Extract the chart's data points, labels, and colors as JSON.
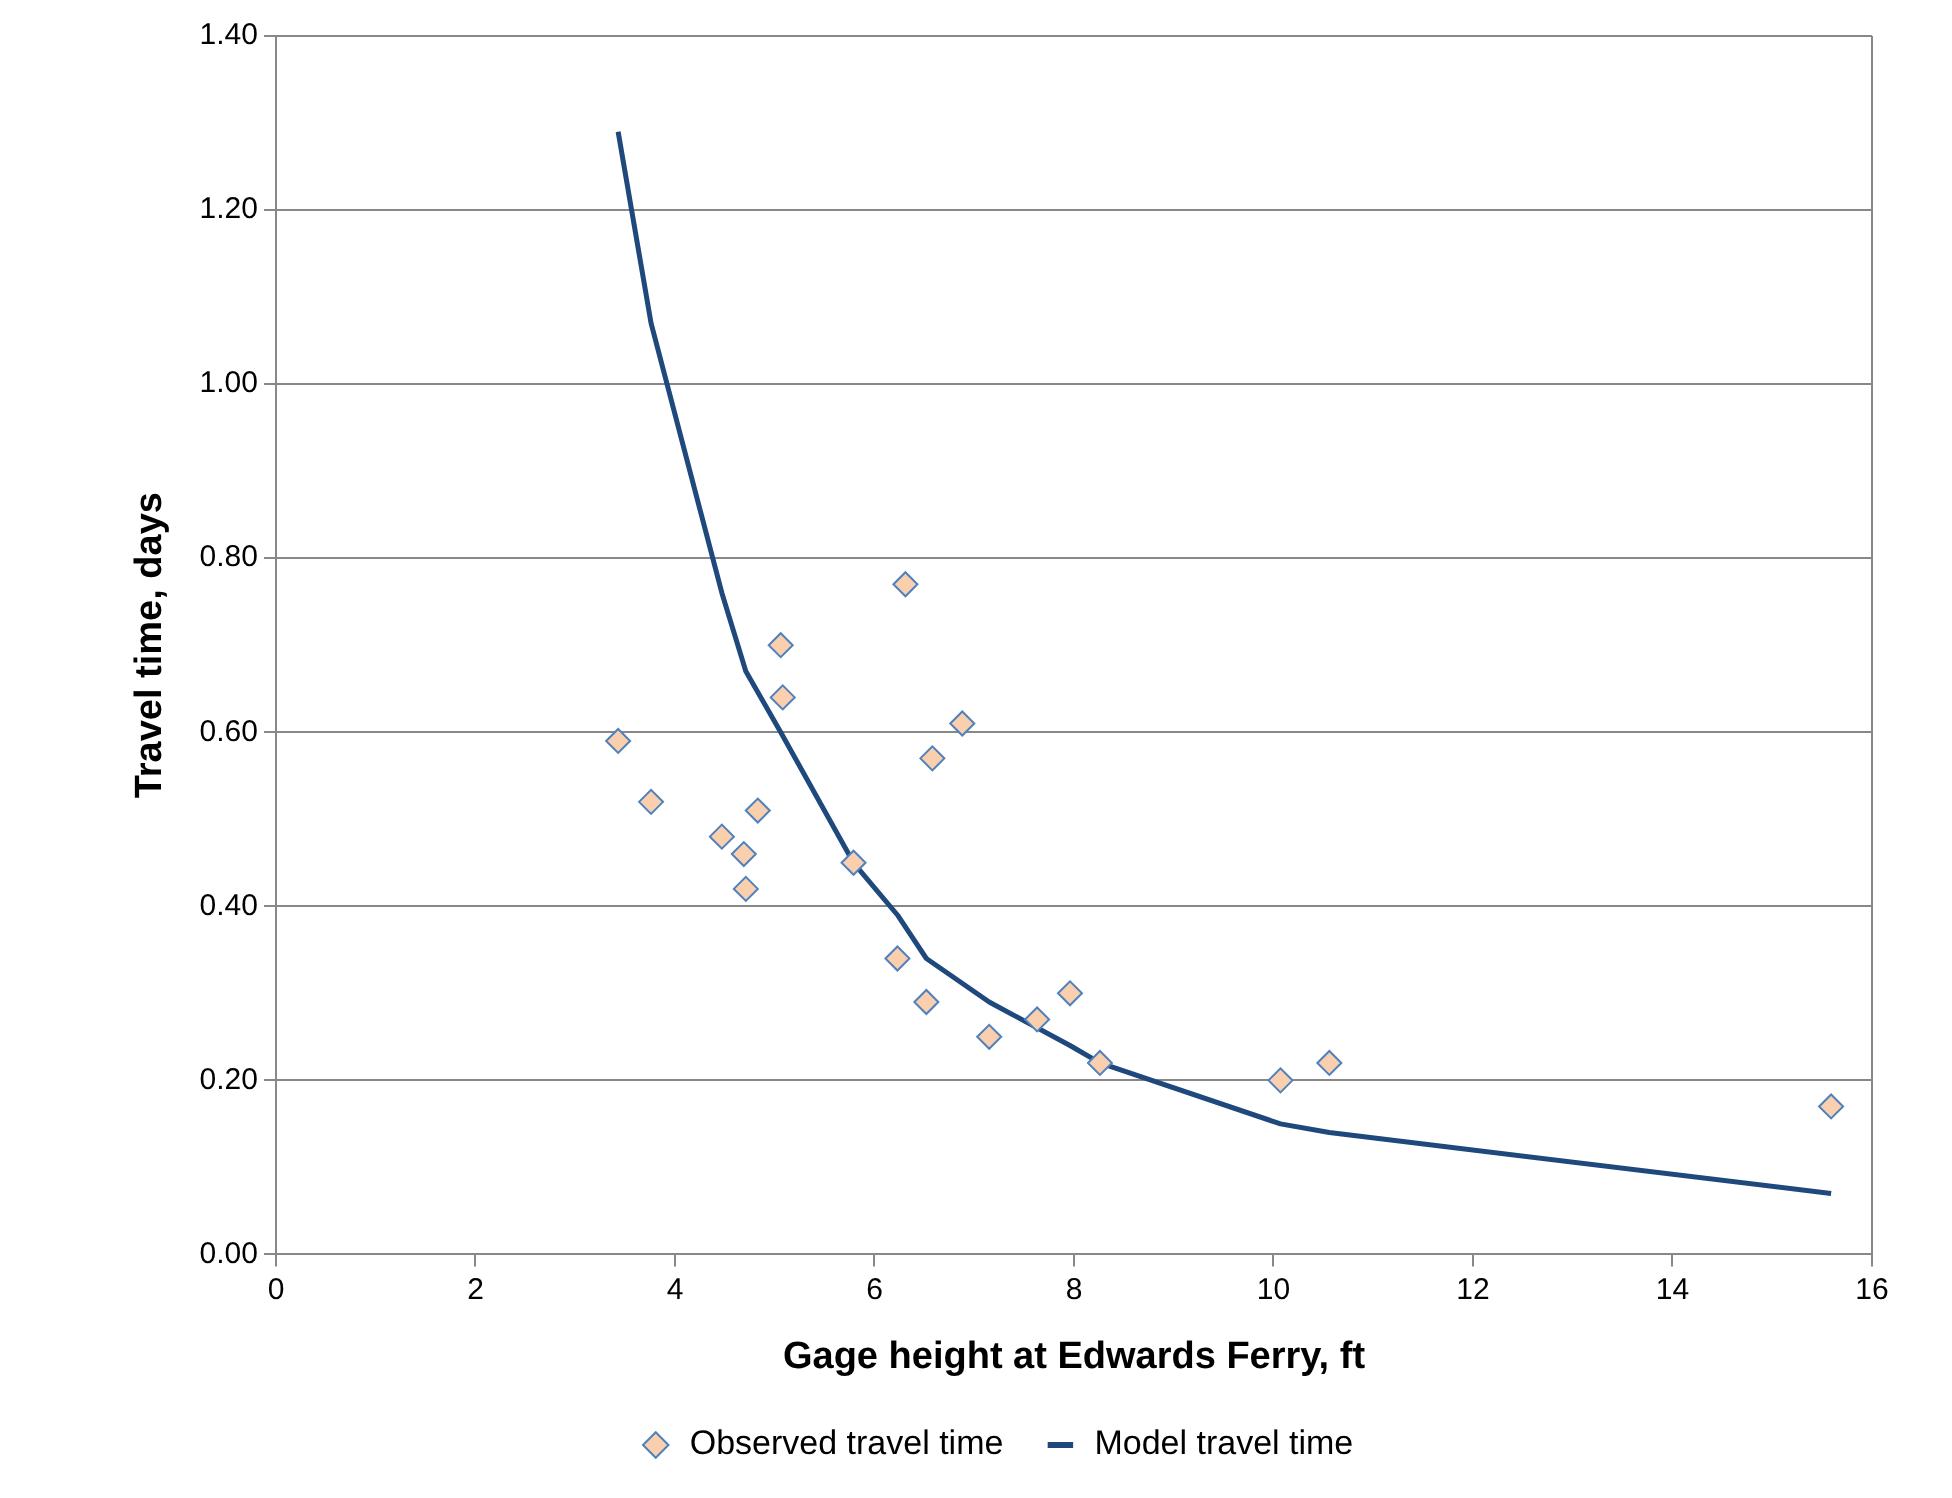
{
  "chart_data": {
    "type": "scatter",
    "xlabel": "Gage height at Edwards Ferry, ft",
    "ylabel": "Travel time, days",
    "xlim": [
      0,
      16
    ],
    "xticks": [
      0,
      2,
      4,
      6,
      8,
      10,
      12,
      14,
      16
    ],
    "ylim": [
      0,
      1.4
    ],
    "yticks": [
      {
        "value": 0,
        "label": "0.00"
      },
      {
        "value": 0.2,
        "label": "0.20"
      },
      {
        "value": 0.4,
        "label": "0.40"
      },
      {
        "value": 0.6,
        "label": "0.60"
      },
      {
        "value": 0.8,
        "label": "0.80"
      },
      {
        "value": 1.0,
        "label": "1.00"
      },
      {
        "value": 1.2,
        "label": "1.20"
      },
      {
        "value": 1.4,
        "label": "1.40"
      }
    ],
    "grid": "y",
    "legend": "bottom",
    "series": [
      {
        "name": "Observed travel time",
        "marker": "diamond",
        "color": "#f9cfae",
        "x": [
          3.43,
          3.76,
          4.47,
          4.69,
          4.71,
          4.83,
          5.06,
          5.08,
          5.79,
          6.31,
          6.23,
          6.52,
          6.58,
          6.88,
          7.15,
          7.63,
          7.96,
          8.26,
          10.07,
          10.56,
          15.59
        ],
        "values": [
          0.59,
          0.52,
          0.48,
          0.46,
          0.42,
          0.51,
          0.7,
          0.64,
          0.45,
          0.77,
          0.34,
          0.29,
          0.57,
          0.61,
          0.25,
          0.27,
          0.3,
          0.22,
          0.2,
          0.22,
          0.17
        ]
      },
      {
        "name": "Model travel time",
        "type": "line",
        "marker": "none",
        "color": "#1f497d",
        "x": [
          3.43,
          3.76,
          4.47,
          4.71,
          5.06,
          5.79,
          6.23,
          6.52,
          7.15,
          7.96,
          8.26,
          10.07,
          10.56,
          15.59
        ],
        "values": [
          1.29,
          1.07,
          0.76,
          0.67,
          0.6,
          0.45,
          0.39,
          0.34,
          0.29,
          0.24,
          0.22,
          0.15,
          0.14,
          0.07
        ]
      }
    ]
  }
}
